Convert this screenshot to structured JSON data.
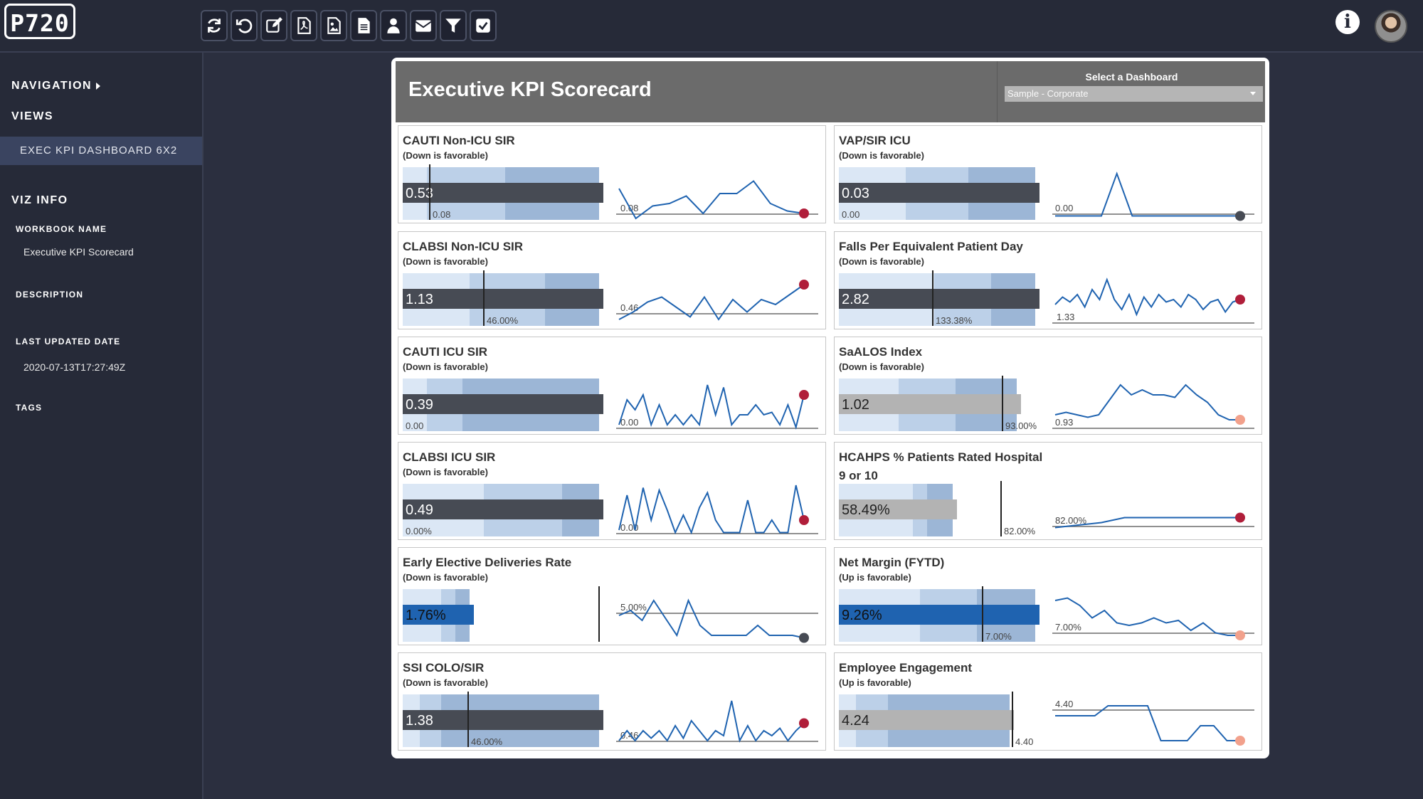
{
  "app": {
    "logo": "P720"
  },
  "toolbar": {
    "icons": [
      "refresh-icon",
      "undo-icon",
      "edit-icon",
      "pdf-icon",
      "image-icon",
      "document-icon",
      "user-icon",
      "mail-icon",
      "filter-icon",
      "checkbox-icon"
    ]
  },
  "header_icons": {
    "info_glyph": "i"
  },
  "sidebar": {
    "navigation": "NAVIGATION",
    "views": "VIEWS",
    "active_view": "EXEC KPI DASHBOARD 6X2",
    "viz_info": "VIZ INFO",
    "workbook_name_label": "WORKBOOK NAME",
    "workbook_name": "Executive KPI Scorecard",
    "description_label": "DESCRIPTION",
    "last_updated_label": "LAST UPDATED DATE",
    "last_updated": "2020-07-13T17:27:49Z",
    "tags_label": "TAGS"
  },
  "dashboard": {
    "title": "Executive KPI Scorecard",
    "select_label": "Select a Dashboard",
    "select_value": "Sample - Corporate",
    "colors": {
      "band_light": "#dbe7f5",
      "band_mid": "#bcd0e8",
      "band_dark": "#9cb6d6",
      "bar_dark": "#474b54",
      "bar_grey": "#b3b3b3",
      "bar_blue": "#1f63b0",
      "line": "#1f63b0",
      "dot_red": "#b01e3a",
      "dot_dark": "#474b54",
      "dot_pink": "#f2a18c"
    },
    "tiles": [
      {
        "title": "CAUTI Non-ICU SIR",
        "subtitle": "(Down is favorable)",
        "value": "0.53",
        "target": "0.08",
        "line_label": "0.08",
        "bar": "dark",
        "dot": "red",
        "series": [
          0.6,
          0.0,
          0.25,
          0.3,
          0.45,
          0.1,
          0.5,
          0.5,
          0.75,
          0.3,
          0.15,
          0.1
        ]
      },
      {
        "title": "VAP/SIR ICU",
        "subtitle": "(Down is favorable)",
        "value": "0.03",
        "target": "0.00",
        "line_label": "0.00",
        "bar": "dark",
        "dot": "dark",
        "series": [
          0.05,
          0.05,
          0.05,
          0.05,
          0.9,
          0.05,
          0.05,
          0.05,
          0.05,
          0.05,
          0.05,
          0.05,
          0.05
        ]
      },
      {
        "title": "CLABSI Non-ICU SIR",
        "subtitle": "(Down is favorable)",
        "value": "1.13",
        "target": "46.00%",
        "line_label": "0.46",
        "bar": "dark",
        "dot": "red",
        "series": [
          0.1,
          0.25,
          0.45,
          0.55,
          0.35,
          0.15,
          0.55,
          0.1,
          0.5,
          0.25,
          0.5,
          0.4,
          0.6,
          0.8
        ]
      },
      {
        "title": "Falls Per Equivalent Patient Day",
        "subtitle": "(Down is favorable)",
        "value": "2.82",
        "target": "133.38%",
        "line_label": "1.33",
        "bar": "dark",
        "dot": "red",
        "series": [
          0.4,
          0.55,
          0.45,
          0.6,
          0.35,
          0.7,
          0.5,
          0.9,
          0.5,
          0.3,
          0.6,
          0.2,
          0.55,
          0.35,
          0.6,
          0.45,
          0.5,
          0.35,
          0.6,
          0.5,
          0.3,
          0.45,
          0.5,
          0.25,
          0.45,
          0.5
        ]
      },
      {
        "title": "CAUTI ICU SIR",
        "subtitle": "(Down is favorable)",
        "value": "0.39",
        "target": "0.00",
        "line_label": "0.00",
        "bar": "dark",
        "dot": "red",
        "series": [
          0.1,
          0.6,
          0.4,
          0.7,
          0.1,
          0.5,
          0.1,
          0.3,
          0.1,
          0.3,
          0.1,
          0.9,
          0.3,
          0.85,
          0.1,
          0.3,
          0.3,
          0.5,
          0.3,
          0.35,
          0.1,
          0.5,
          0.05,
          0.7
        ]
      },
      {
        "title": "SaALOS Index",
        "subtitle": "(Down is favorable)",
        "value": "1.02",
        "target": "93.00%",
        "line_label": "0.93",
        "bar": "grey",
        "dot": "pink",
        "series": [
          0.3,
          0.35,
          0.3,
          0.25,
          0.3,
          0.6,
          0.9,
          0.7,
          0.8,
          0.7,
          0.7,
          0.65,
          0.9,
          0.7,
          0.55,
          0.3,
          0.2,
          0.2
        ]
      },
      {
        "title": "CLABSI ICU SIR",
        "subtitle": "(Down is favorable)",
        "value": "0.49",
        "target": "0.00%",
        "line_label": "0.00",
        "bar": "dark",
        "dot": "red",
        "series": [
          0.1,
          0.8,
          0.1,
          0.95,
          0.3,
          0.9,
          0.5,
          0.05,
          0.4,
          0.05,
          0.55,
          0.85,
          0.3,
          0.05,
          0.05,
          0.05,
          0.7,
          0.05,
          0.05,
          0.3,
          0.05,
          0.05,
          1.0,
          0.3
        ]
      },
      {
        "title": "HCAHPS % Patients Rated Hospital 9 or 10",
        "subtitle": "(Up is favorable)",
        "value": "58.49%",
        "target": "82.00%",
        "line_label": "82.00%",
        "bar": "grey",
        "dot": "red",
        "series": [
          0.15,
          0.2,
          0.25,
          0.35,
          0.35,
          0.35,
          0.35,
          0.35,
          0.35
        ]
      },
      {
        "title": "Early Elective Deliveries Rate",
        "subtitle": "(Down is favorable)",
        "value": "1.76%",
        "target": "",
        "line_label": "5.00%",
        "bar": "blue",
        "dot": "dark",
        "series": [
          0.5,
          0.6,
          0.4,
          0.8,
          0.45,
          0.1,
          0.8,
          0.3,
          0.1,
          0.1,
          0.1,
          0.1,
          0.3,
          0.1,
          0.1,
          0.1,
          0.05
        ]
      },
      {
        "title": "Net Margin (FYTD)",
        "subtitle": "(Up is favorable)",
        "value": "9.26%",
        "target": "7.00%",
        "line_label": "7.00%",
        "bar": "blue",
        "dot": "pink",
        "series": [
          0.8,
          0.85,
          0.7,
          0.45,
          0.6,
          0.35,
          0.3,
          0.35,
          0.45,
          0.35,
          0.4,
          0.2,
          0.35,
          0.15,
          0.1,
          0.1
        ]
      },
      {
        "title": "SSI COLO/SIR",
        "subtitle": "(Down is favorable)",
        "value": "1.38",
        "target": "46.00%",
        "line_label": "0.46",
        "bar": "dark",
        "dot": "red",
        "series": [
          0.1,
          0.3,
          0.1,
          0.3,
          0.15,
          0.3,
          0.1,
          0.4,
          0.15,
          0.5,
          0.3,
          0.1,
          0.3,
          0.2,
          0.9,
          0.1,
          0.4,
          0.1,
          0.3,
          0.2,
          0.35,
          0.1,
          0.3,
          0.45
        ]
      },
      {
        "title": "Employee Engagement",
        "subtitle": "(Up is favorable)",
        "value": "4.24",
        "target": "4.40",
        "line_label": "4.40",
        "bar": "grey",
        "dot": "pink",
        "series": [
          0.6,
          0.6,
          0.6,
          0.6,
          0.8,
          0.8,
          0.8,
          0.8,
          0.1,
          0.1,
          0.1,
          0.4,
          0.4,
          0.1,
          0.1
        ]
      }
    ]
  }
}
